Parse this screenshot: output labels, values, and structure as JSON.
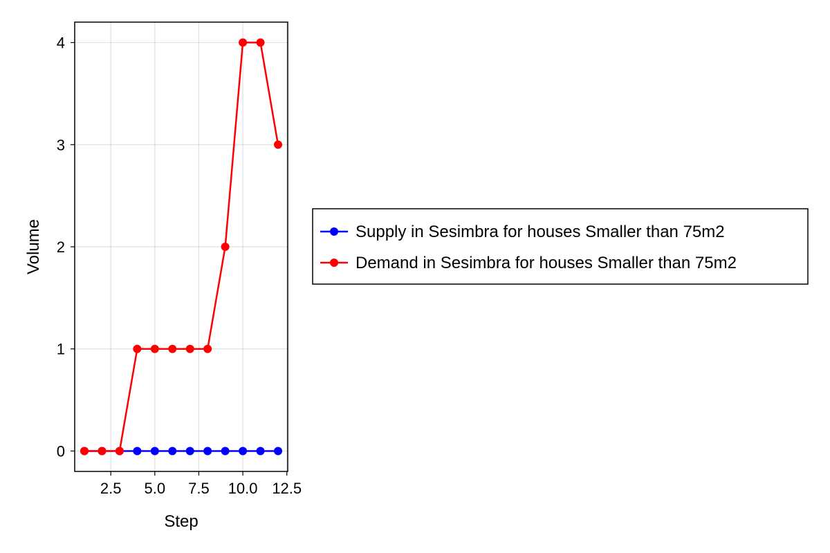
{
  "chart_data": {
    "type": "line",
    "xlabel": "Step",
    "ylabel": "Volume",
    "xlim": [
      0.45,
      12.55
    ],
    "ylim": [
      -0.2,
      4.2
    ],
    "xticks": [
      2.5,
      5.0,
      7.5,
      10.0,
      12.5
    ],
    "xtick_labels": [
      "2.5",
      "5.0",
      "7.5",
      "10.0",
      "12.5"
    ],
    "yticks": [
      0,
      1,
      2,
      3,
      4
    ],
    "ytick_labels": [
      "0",
      "1",
      "2",
      "3",
      "4"
    ],
    "grid": true,
    "legend_position": "right",
    "x": [
      1,
      2,
      3,
      4,
      5,
      6,
      7,
      8,
      9,
      10,
      11,
      12
    ],
    "series": [
      {
        "name": "Supply in Sesimbra for houses Smaller than 75m2",
        "color": "#0000ff",
        "values": [
          0,
          0,
          0,
          0,
          0,
          0,
          0,
          0,
          0,
          0,
          0,
          0
        ]
      },
      {
        "name": "Demand in Sesimbra for houses Smaller than 75m2",
        "color": "#ff0000",
        "values": [
          0,
          0,
          0,
          1,
          1,
          1,
          1,
          1,
          2,
          4,
          4,
          3
        ]
      }
    ]
  }
}
